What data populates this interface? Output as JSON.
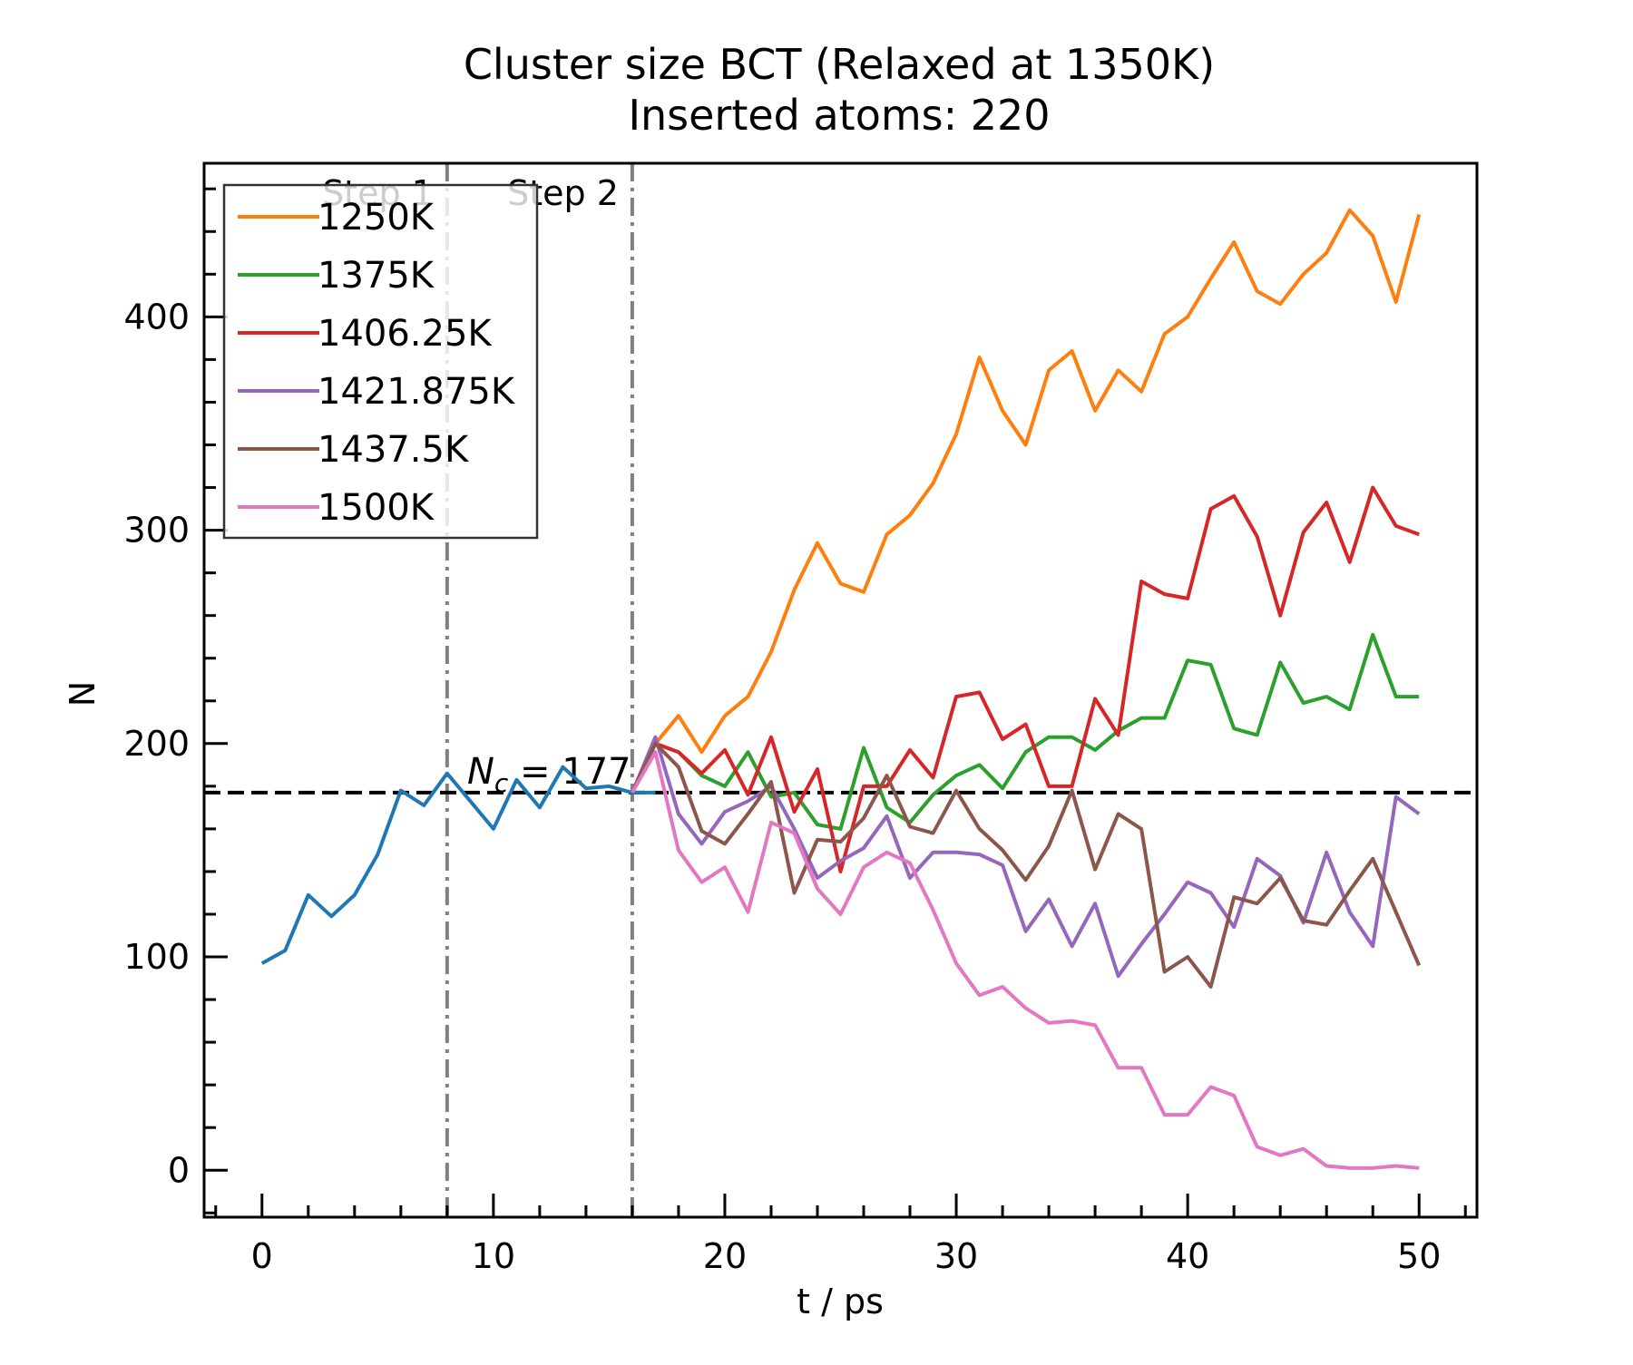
{
  "chart_data": {
    "type": "line",
    "title": "Cluster size BCT (Relaxed at 1350K)",
    "subtitle": "Inserted atoms: 220",
    "xlabel": "t / ps",
    "ylabel": "N",
    "xlim": [
      -2.5,
      52.5
    ],
    "ylim": [
      -22,
      472
    ],
    "xticks": [
      0,
      10,
      20,
      30,
      40,
      50
    ],
    "xtick_labels": [
      "0",
      "10",
      "20",
      "30",
      "40",
      "50"
    ],
    "xminor_step": 2,
    "yticks": [
      0,
      100,
      200,
      300,
      400
    ],
    "ytick_labels": [
      "0",
      "100",
      "200",
      "300",
      "400"
    ],
    "yminor_step": 20,
    "grid": false,
    "legend_position": "top-left",
    "annotations": {
      "step1_label": "Step 1",
      "step2_label": "Step 2",
      "step1_x": 8,
      "step2_x": 16,
      "critical_label_main": "N",
      "critical_label_sub": "c",
      "critical_label_rest": " = 177",
      "critical_value": 177
    },
    "base_series": {
      "color": "#1f77b4",
      "x": [
        0,
        1,
        2,
        3,
        4,
        5,
        6,
        7,
        8,
        9,
        10,
        11,
        12,
        13,
        14,
        15,
        16,
        17
      ],
      "values": [
        97,
        103,
        129,
        119,
        129,
        148,
        178,
        171,
        186,
        173,
        160,
        183,
        170,
        189,
        179,
        180,
        177,
        177
      ]
    },
    "series": [
      {
        "name": "1250K",
        "color": "#ff7f0e",
        "x": [
          16,
          17,
          18,
          19,
          20,
          21,
          22,
          23,
          24,
          25,
          26,
          27,
          28,
          29,
          30,
          31,
          32,
          33,
          34,
          35,
          36,
          37,
          38,
          39,
          40,
          41,
          42,
          43,
          44,
          45,
          46,
          47,
          48,
          49,
          50
        ],
        "values": [
          177,
          200,
          213,
          196,
          213,
          222,
          243,
          272,
          294,
          275,
          271,
          298,
          307,
          322,
          345,
          381,
          356,
          340,
          375,
          384,
          356,
          375,
          365,
          392,
          400,
          418,
          435,
          412,
          406,
          420,
          430,
          450,
          438,
          407,
          448
        ]
      },
      {
        "name": "1375K",
        "color": "#2ca02c",
        "x": [
          16,
          17,
          18,
          19,
          20,
          21,
          22,
          23,
          24,
          25,
          26,
          27,
          28,
          29,
          30,
          31,
          32,
          33,
          34,
          35,
          36,
          37,
          38,
          39,
          40,
          41,
          42,
          43,
          44,
          45,
          46,
          47,
          48,
          49,
          50
        ],
        "values": [
          177,
          200,
          196,
          185,
          180,
          196,
          175,
          177,
          162,
          160,
          198,
          170,
          163,
          176,
          185,
          190,
          179,
          196,
          203,
          203,
          197,
          206,
          212,
          212,
          239,
          237,
          207,
          204,
          238,
          219,
          222,
          216,
          251,
          222,
          222
        ]
      },
      {
        "name": "1406.25K",
        "color": "#d62728",
        "x": [
          16,
          17,
          18,
          19,
          20,
          21,
          22,
          23,
          24,
          25,
          26,
          27,
          28,
          29,
          30,
          31,
          32,
          33,
          34,
          35,
          36,
          37,
          38,
          39,
          40,
          41,
          42,
          43,
          44,
          45,
          46,
          47,
          48,
          49,
          50
        ],
        "values": [
          177,
          200,
          196,
          186,
          197,
          176,
          203,
          168,
          188,
          140,
          180,
          180,
          197,
          184,
          222,
          224,
          202,
          209,
          180,
          180,
          221,
          204,
          276,
          270,
          268,
          310,
          316,
          297,
          260,
          299,
          313,
          285,
          320,
          302,
          298
        ]
      },
      {
        "name": "1421.875K",
        "color": "#9467bd",
        "x": [
          16,
          17,
          18,
          19,
          20,
          21,
          22,
          23,
          24,
          25,
          26,
          27,
          28,
          29,
          30,
          31,
          32,
          33,
          34,
          35,
          36,
          37,
          38,
          39,
          40,
          41,
          42,
          43,
          44,
          45,
          46,
          47,
          48,
          49,
          50
        ],
        "values": [
          177,
          203,
          167,
          153,
          168,
          173,
          180,
          160,
          137,
          145,
          151,
          166,
          137,
          149,
          149,
          148,
          143,
          112,
          127,
          105,
          125,
          91,
          106,
          120,
          135,
          130,
          114,
          146,
          138,
          116,
          149,
          121,
          105,
          175,
          167
        ]
      },
      {
        "name": "1437.5K",
        "color": "#8c564b",
        "x": [
          16,
          17,
          18,
          19,
          20,
          21,
          22,
          23,
          24,
          25,
          26,
          27,
          28,
          29,
          30,
          31,
          32,
          33,
          34,
          35,
          36,
          37,
          38,
          39,
          40,
          41,
          42,
          43,
          44,
          45,
          46,
          47,
          48,
          49,
          50
        ],
        "values": [
          177,
          200,
          189,
          159,
          153,
          167,
          182,
          130,
          155,
          154,
          165,
          185,
          161,
          158,
          178,
          160,
          150,
          136,
          152,
          178,
          141,
          167,
          160,
          93,
          100,
          86,
          128,
          125,
          137,
          117,
          115,
          131,
          146,
          121,
          96
        ]
      },
      {
        "name": "1500K",
        "color": "#e377c2",
        "x": [
          16,
          17,
          18,
          19,
          20,
          21,
          22,
          23,
          24,
          25,
          26,
          27,
          28,
          29,
          30,
          31,
          32,
          33,
          34,
          35,
          36,
          37,
          38,
          39,
          40,
          41,
          42,
          43,
          44,
          45,
          46,
          47,
          48,
          49,
          50
        ],
        "values": [
          177,
          196,
          150,
          135,
          142,
          121,
          163,
          158,
          132,
          120,
          142,
          149,
          144,
          122,
          97,
          82,
          86,
          76,
          69,
          70,
          68,
          48,
          48,
          26,
          26,
          39,
          35,
          11,
          7,
          10,
          2,
          1,
          1,
          2,
          1
        ]
      }
    ]
  }
}
